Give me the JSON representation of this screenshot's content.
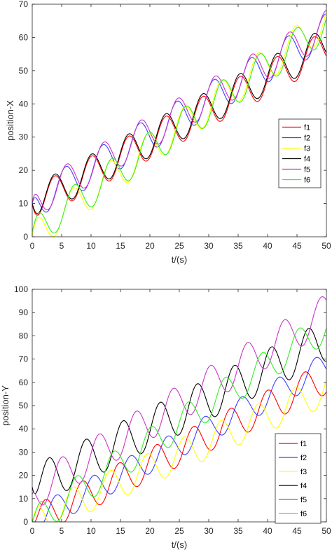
{
  "chart_data": [
    {
      "type": "line",
      "title": "",
      "xlabel": "t/(s)",
      "ylabel": "position-X",
      "xlim": [
        0,
        50
      ],
      "ylim": [
        0,
        70
      ],
      "xticks": [
        "0",
        "5",
        "10",
        "15",
        "20",
        "25",
        "30",
        "35",
        "40",
        "45",
        "50"
      ],
      "yticks": [
        "0",
        "10",
        "20",
        "30",
        "40",
        "50",
        "60",
        "70"
      ],
      "grid": false,
      "legend": "right",
      "series": [
        {
          "name": "f1",
          "color": "#ff0000",
          "params": {
            "start": 9.5,
            "end": 57,
            "amp": 5.2,
            "period": 6.3,
            "phase": 0.35
          }
        },
        {
          "name": "f2",
          "color": "#3d3dff",
          "params": {
            "start": 10,
            "end": 62,
            "amp": 5.2,
            "period": 6.3,
            "phase": 0.65
          }
        },
        {
          "name": "f3",
          "color": "#ffff00",
          "params": {
            "start": 0.5,
            "end": 65,
            "amp": 5.2,
            "period": 6.3,
            "phase": -0.15
          }
        },
        {
          "name": "f4",
          "color": "#000000",
          "params": {
            "start": 10,
            "end": 58,
            "amp": 5.2,
            "period": 6.3,
            "phase": 0.35
          }
        },
        {
          "name": "f5",
          "color": "#cc33cc",
          "params": {
            "start": 10.5,
            "end": 63,
            "amp": 5.2,
            "period": 6.3,
            "phase": 0.68
          }
        },
        {
          "name": "f6",
          "color": "#33ee22",
          "params": {
            "start": 1.5,
            "end": 64,
            "amp": 5.2,
            "period": 6.3,
            "phase": -0.12
          }
        }
      ]
    },
    {
      "type": "line",
      "title": "",
      "xlabel": "t/(s)",
      "ylabel": "position-Y",
      "xlim": [
        0,
        50
      ],
      "ylim": [
        0,
        100
      ],
      "xticks": [
        "0",
        "5",
        "10",
        "15",
        "20",
        "25",
        "30",
        "35",
        "40",
        "45",
        "50"
      ],
      "yticks": [
        "0",
        "10",
        "20",
        "30",
        "40",
        "50",
        "60",
        "70",
        "80",
        "90",
        "100"
      ],
      "grid": false,
      "legend": "bottom-right",
      "series": [
        {
          "name": "f1",
          "color": "#ff0000",
          "params": {
            "start": 0,
            "end": 62,
            "amp": 7,
            "period": 6.3,
            "phase": 0.1
          }
        },
        {
          "name": "f2",
          "color": "#3d3dff",
          "params": {
            "start": 0,
            "end": 67,
            "amp": 6,
            "period": 6.3,
            "phase": 0.4
          }
        },
        {
          "name": "f3",
          "color": "#ffff00",
          "params": {
            "start": 0,
            "end": 57,
            "amp": 7,
            "period": 6.3,
            "phase": 0.85
          }
        },
        {
          "name": "f4",
          "color": "#000000",
          "params": {
            "start": 15,
            "end": 78,
            "amp": 9,
            "period": 6.3,
            "phase": 0.2
          }
        },
        {
          "name": "f5",
          "color": "#cc33cc",
          "params": {
            "start": 12,
            "end": 90,
            "amp": 8,
            "period": 6.3,
            "phase": 0.55
          }
        },
        {
          "name": "f6",
          "color": "#33ee22",
          "params": {
            "start": 0,
            "end": 84,
            "amp": 7,
            "period": 6.3,
            "phase": -0.05
          }
        }
      ]
    }
  ]
}
